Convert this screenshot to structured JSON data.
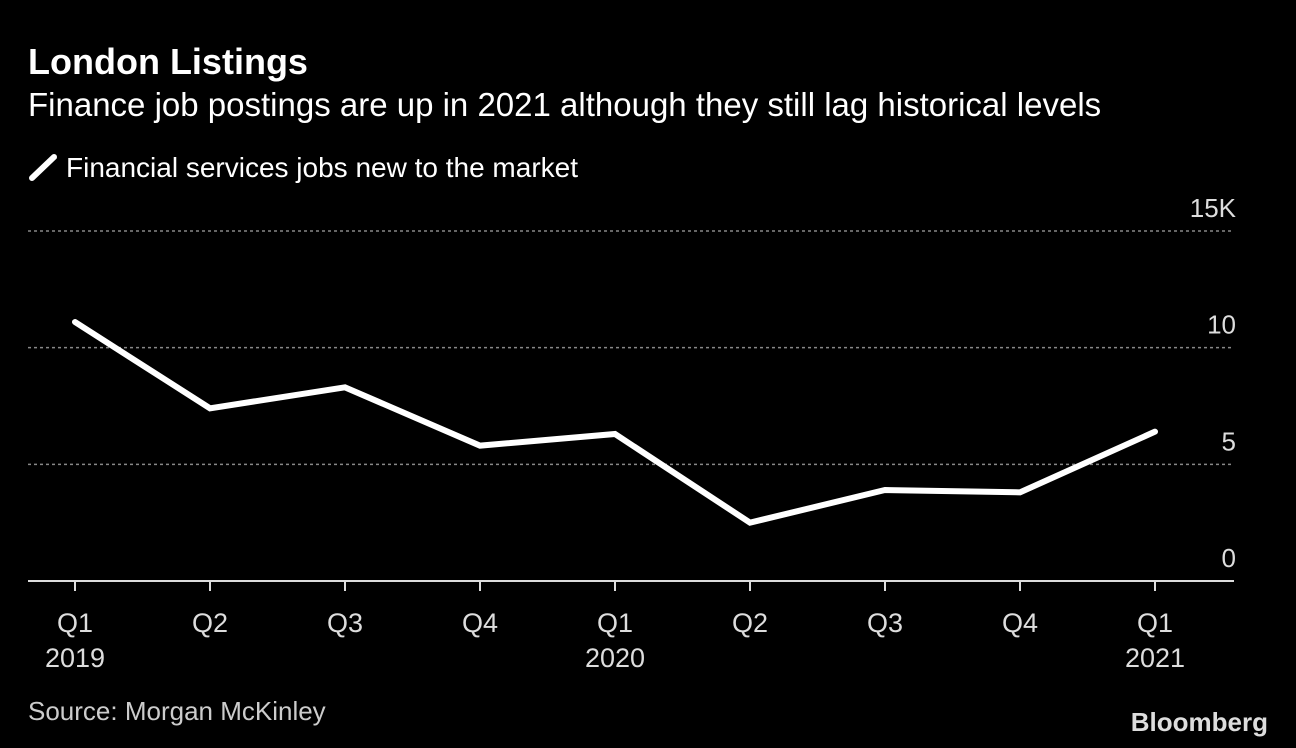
{
  "chart_data": {
    "type": "line",
    "title": "London Listings",
    "subtitle": "Finance job postings are up in 2021 although they still lag historical levels",
    "categories": [
      "Q1",
      "Q2",
      "Q3",
      "Q4",
      "Q1",
      "Q2",
      "Q3",
      "Q4",
      "Q1"
    ],
    "years": [
      "2019",
      null,
      null,
      null,
      "2020",
      null,
      null,
      null,
      "2021"
    ],
    "series": [
      {
        "name": "Financial services jobs new to the market",
        "color": "#ffffff",
        "values": [
          11.1,
          7.4,
          8.3,
          5.8,
          6.3,
          2.5,
          3.9,
          3.8,
          6.4
        ]
      }
    ],
    "ylim": [
      0,
      15
    ],
    "yticks": [
      0,
      5,
      10,
      {
        "value": 15,
        "label": "15K"
      }
    ],
    "grid": true,
    "source": "Source: Morgan McKinley",
    "brand": "Bloomberg"
  }
}
